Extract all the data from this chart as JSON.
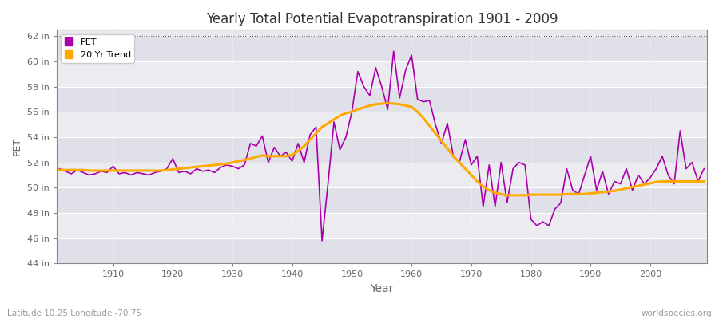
{
  "title": "Yearly Total Potential Evapotranspiration 1901 - 2009",
  "xlabel": "Year",
  "ylabel": "PET",
  "subtitle_left": "Latitude 10.25 Longitude -70.75",
  "subtitle_right": "worldspecies.org",
  "ylim": [
    44,
    62.5
  ],
  "yticks": [
    44,
    46,
    48,
    50,
    52,
    54,
    56,
    58,
    60,
    62
  ],
  "ytick_labels": [
    "44 in",
    "46 in",
    "48 in",
    "50 in",
    "52 in",
    "54 in",
    "56 in",
    "58 in",
    "60 in",
    "62 in"
  ],
  "xlim": [
    1900.5,
    2009.5
  ],
  "xticks": [
    1910,
    1920,
    1930,
    1940,
    1950,
    1960,
    1970,
    1980,
    1990,
    2000
  ],
  "pet_color": "#aa00aa",
  "trend_color": "#ffaa00",
  "fig_bg_color": "#ffffff",
  "plot_bg_color": "#e8e8ee",
  "band_color1": "#e0e0e8",
  "band_color2": "#ebebf0",
  "grid_color": "#ffffff",
  "dotted_line_color": "#555555",
  "dotted_line_y": 62,
  "spine_color": "#888888",
  "tick_color": "#666666",
  "title_color": "#333333",
  "years": [
    1901,
    1902,
    1903,
    1904,
    1905,
    1906,
    1907,
    1908,
    1909,
    1910,
    1911,
    1912,
    1913,
    1914,
    1915,
    1916,
    1917,
    1918,
    1919,
    1920,
    1921,
    1922,
    1923,
    1924,
    1925,
    1926,
    1927,
    1928,
    1929,
    1930,
    1931,
    1932,
    1933,
    1934,
    1935,
    1936,
    1937,
    1938,
    1939,
    1940,
    1941,
    1942,
    1943,
    1944,
    1945,
    1946,
    1947,
    1948,
    1949,
    1950,
    1951,
    1952,
    1953,
    1954,
    1955,
    1956,
    1957,
    1958,
    1959,
    1960,
    1961,
    1962,
    1963,
    1964,
    1965,
    1966,
    1967,
    1968,
    1969,
    1970,
    1971,
    1972,
    1973,
    1974,
    1975,
    1976,
    1977,
    1978,
    1979,
    1980,
    1981,
    1982,
    1983,
    1984,
    1985,
    1986,
    1987,
    1988,
    1989,
    1990,
    1991,
    1992,
    1993,
    1994,
    1995,
    1996,
    1997,
    1998,
    1999,
    2000,
    2001,
    2002,
    2003,
    2004,
    2005,
    2006,
    2007,
    2008,
    2009
  ],
  "pet": [
    51.5,
    51.3,
    51.1,
    51.4,
    51.2,
    51.0,
    51.1,
    51.3,
    51.2,
    51.7,
    51.1,
    51.2,
    51.0,
    51.2,
    51.1,
    51.0,
    51.2,
    51.3,
    51.5,
    52.3,
    51.2,
    51.3,
    51.1,
    51.5,
    51.3,
    51.4,
    51.2,
    51.6,
    51.8,
    51.7,
    51.5,
    51.8,
    53.5,
    53.3,
    54.1,
    52.0,
    53.2,
    52.5,
    52.8,
    52.1,
    53.5,
    52.0,
    54.2,
    54.8,
    45.8,
    50.3,
    55.2,
    53.0,
    54.0,
    56.0,
    59.2,
    58.0,
    57.3,
    59.5,
    58.0,
    56.2,
    60.8,
    57.1,
    59.3,
    60.5,
    57.0,
    56.8,
    56.9,
    55.0,
    53.5,
    55.1,
    52.5,
    52.0,
    53.8,
    51.8,
    52.5,
    48.5,
    51.8,
    48.5,
    52.0,
    48.8,
    51.5,
    52.0,
    51.8,
    47.5,
    47.0,
    47.3,
    47.0,
    48.3,
    48.8,
    51.5,
    49.8,
    49.5,
    51.0,
    52.5,
    49.8,
    51.3,
    49.5,
    50.5,
    50.3,
    51.5,
    49.8,
    51.0,
    50.3,
    50.8,
    51.5,
    52.5,
    51.0,
    50.3,
    54.5,
    51.5,
    52.0,
    50.5,
    51.5
  ],
  "trend": [
    51.4,
    51.4,
    51.4,
    51.4,
    51.4,
    51.35,
    51.35,
    51.35,
    51.35,
    51.35,
    51.35,
    51.35,
    51.35,
    51.35,
    51.35,
    51.35,
    51.35,
    51.35,
    51.4,
    51.45,
    51.5,
    51.55,
    51.6,
    51.65,
    51.7,
    51.75,
    51.8,
    51.85,
    51.9,
    52.0,
    52.1,
    52.2,
    52.3,
    52.45,
    52.55,
    52.5,
    52.5,
    52.5,
    52.5,
    52.6,
    52.9,
    53.3,
    53.8,
    54.3,
    54.8,
    55.1,
    55.4,
    55.7,
    55.9,
    56.0,
    56.2,
    56.35,
    56.5,
    56.6,
    56.65,
    56.7,
    56.65,
    56.6,
    56.5,
    56.4,
    56.0,
    55.5,
    54.9,
    54.3,
    53.7,
    53.1,
    52.5,
    52.0,
    51.5,
    51.0,
    50.5,
    50.1,
    49.8,
    49.6,
    49.5,
    49.4,
    49.4,
    49.4,
    49.4,
    49.45,
    49.45,
    49.45,
    49.45,
    49.45,
    49.45,
    49.5,
    49.5,
    49.5,
    49.5,
    49.55,
    49.6,
    49.65,
    49.7,
    49.75,
    49.85,
    49.95,
    50.05,
    50.15,
    50.25,
    50.35,
    50.45,
    50.5,
    50.5,
    50.5,
    50.5,
    50.5,
    50.5,
    50.5,
    50.5
  ]
}
